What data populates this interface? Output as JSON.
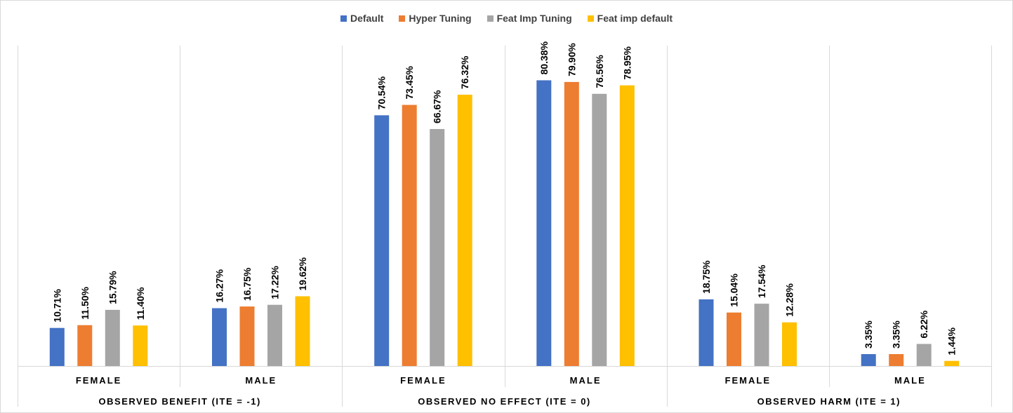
{
  "chart_data": {
    "type": "bar",
    "legend_position": "top",
    "grid": false,
    "ylim": [
      0,
      90
    ],
    "groups": [
      {
        "label": "OBSERVED BENEFIT (ITE = -1)",
        "categories": [
          "FEMALE",
          "MALE"
        ]
      },
      {
        "label": "OBSERVED NO EFFECT (ITE = 0)",
        "categories": [
          "FEMALE",
          "MALE"
        ]
      },
      {
        "label": "OBSERVED HARM (ITE = 1)",
        "categories": [
          "FEMALE",
          "MALE"
        ]
      }
    ],
    "series": [
      {
        "name": "Default",
        "color": "#4472C4",
        "values": [
          10.71,
          16.27,
          70.54,
          80.38,
          18.75,
          3.35
        ],
        "labels": [
          "10.71%",
          "16.27%",
          "70.54%",
          "80.38%",
          "18.75%",
          "3.35%"
        ]
      },
      {
        "name": "Hyper Tuning",
        "color": "#ED7D31",
        "values": [
          11.5,
          16.75,
          73.45,
          79.9,
          15.04,
          3.35
        ],
        "labels": [
          "11.50%",
          "16.75%",
          "73.45%",
          "79.90%",
          "15.04%",
          "3.35%"
        ]
      },
      {
        "name": "Feat Imp Tuning",
        "color": "#A5A5A5",
        "values": [
          15.79,
          17.22,
          66.67,
          76.56,
          17.54,
          6.22
        ],
        "labels": [
          "15.79%",
          "17.22%",
          "66.67%",
          "76.56%",
          "17.54%",
          "6.22%"
        ]
      },
      {
        "name": "Feat imp default",
        "color": "#FFC000",
        "values": [
          11.4,
          19.62,
          76.32,
          78.95,
          12.28,
          1.44
        ],
        "labels": [
          "11.40%",
          "19.62%",
          "76.32%",
          "78.95%",
          "12.28%",
          "1.44%"
        ]
      }
    ]
  }
}
